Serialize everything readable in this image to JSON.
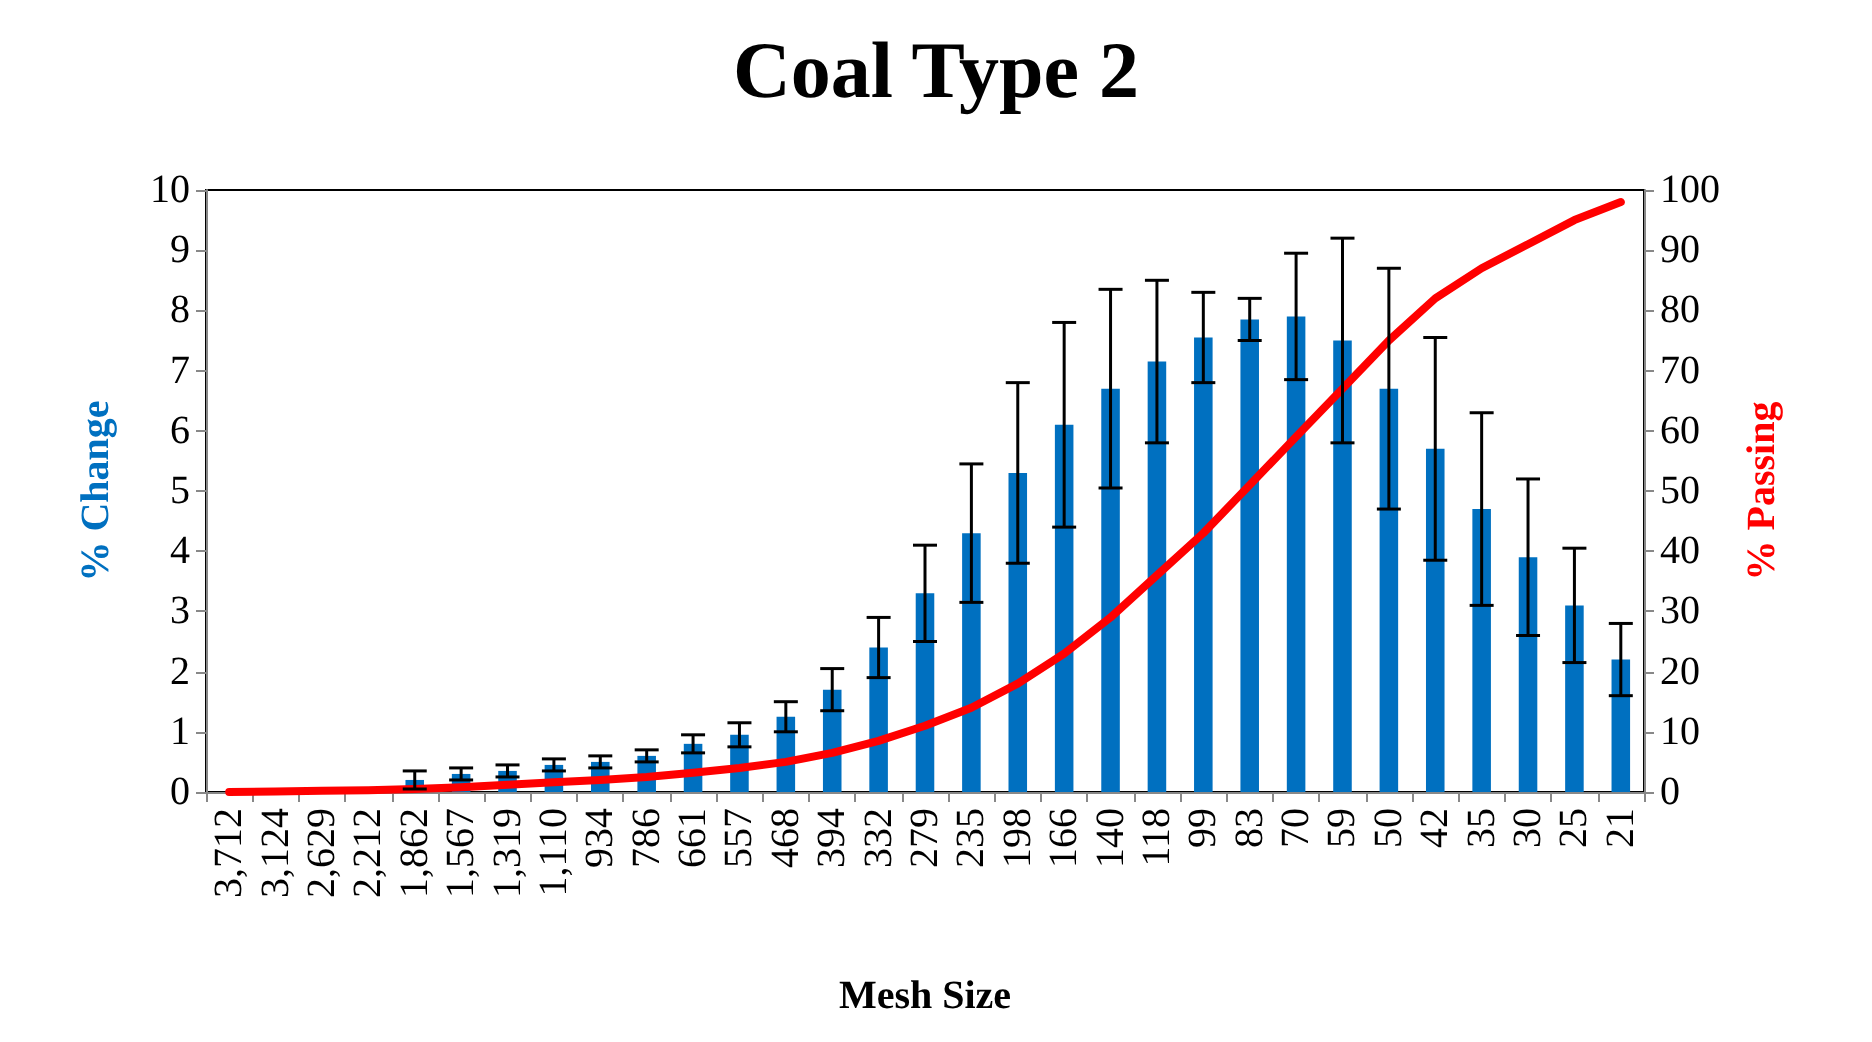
{
  "chart_data": {
    "type": "bar",
    "title": "Coal Type 2",
    "xlabel": "Mesh Size",
    "ylabel": "% Change",
    "y2label": "% Passing",
    "categories": [
      "3,712",
      "3,124",
      "2,629",
      "2,212",
      "1,862",
      "1,567",
      "1,319",
      "1,110",
      "934",
      "786",
      "661",
      "557",
      "468",
      "394",
      "332",
      "279",
      "235",
      "198",
      "166",
      "140",
      "118",
      "99",
      "83",
      "70",
      "59",
      "50",
      "42",
      "35",
      "30",
      "25",
      "21"
    ],
    "series": [
      {
        "color": "#0070c0",
        "values": [
          null,
          null,
          null,
          null,
          0.2,
          0.3,
          0.35,
          0.45,
          0.5,
          0.6,
          0.8,
          0.95,
          1.25,
          1.7,
          2.4,
          3.3,
          4.3,
          5.3,
          6.1,
          6.7,
          7.15,
          7.55,
          7.85,
          7.9,
          7.5,
          6.7,
          5.7,
          4.7,
          3.9,
          3.1,
          2.2
        ],
        "errors": [
          null,
          null,
          null,
          null,
          0.15,
          0.1,
          0.1,
          0.1,
          0.1,
          0.1,
          0.15,
          0.2,
          0.25,
          0.35,
          0.5,
          0.8,
          1.15,
          1.5,
          1.7,
          1.65,
          1.35,
          0.75,
          0.35,
          1.05,
          1.7,
          2.0,
          1.85,
          1.6,
          1.3,
          0.95,
          0.6
        ]
      },
      {
        "type": "line",
        "axis": "y2",
        "color": "#ff0000",
        "values": [
          0,
          0.1,
          0.2,
          0.3,
          0.5,
          0.8,
          1.2,
          1.6,
          2,
          2.5,
          3.2,
          4,
          5,
          6.5,
          8.5,
          11,
          14,
          18,
          23,
          29,
          36,
          43,
          51,
          59,
          67,
          75,
          82,
          87,
          91,
          95,
          98
        ]
      }
    ],
    "ylim": [
      0,
      10
    ],
    "yticks": [
      0,
      1,
      2,
      3,
      4,
      5,
      6,
      7,
      8,
      9,
      10
    ],
    "y2lim": [
      0,
      100
    ],
    "y2ticks": [
      0,
      10,
      20,
      30,
      40,
      50,
      60,
      70,
      80,
      90,
      100
    ],
    "grid": false,
    "marker": "none",
    "line_style": "solid"
  }
}
